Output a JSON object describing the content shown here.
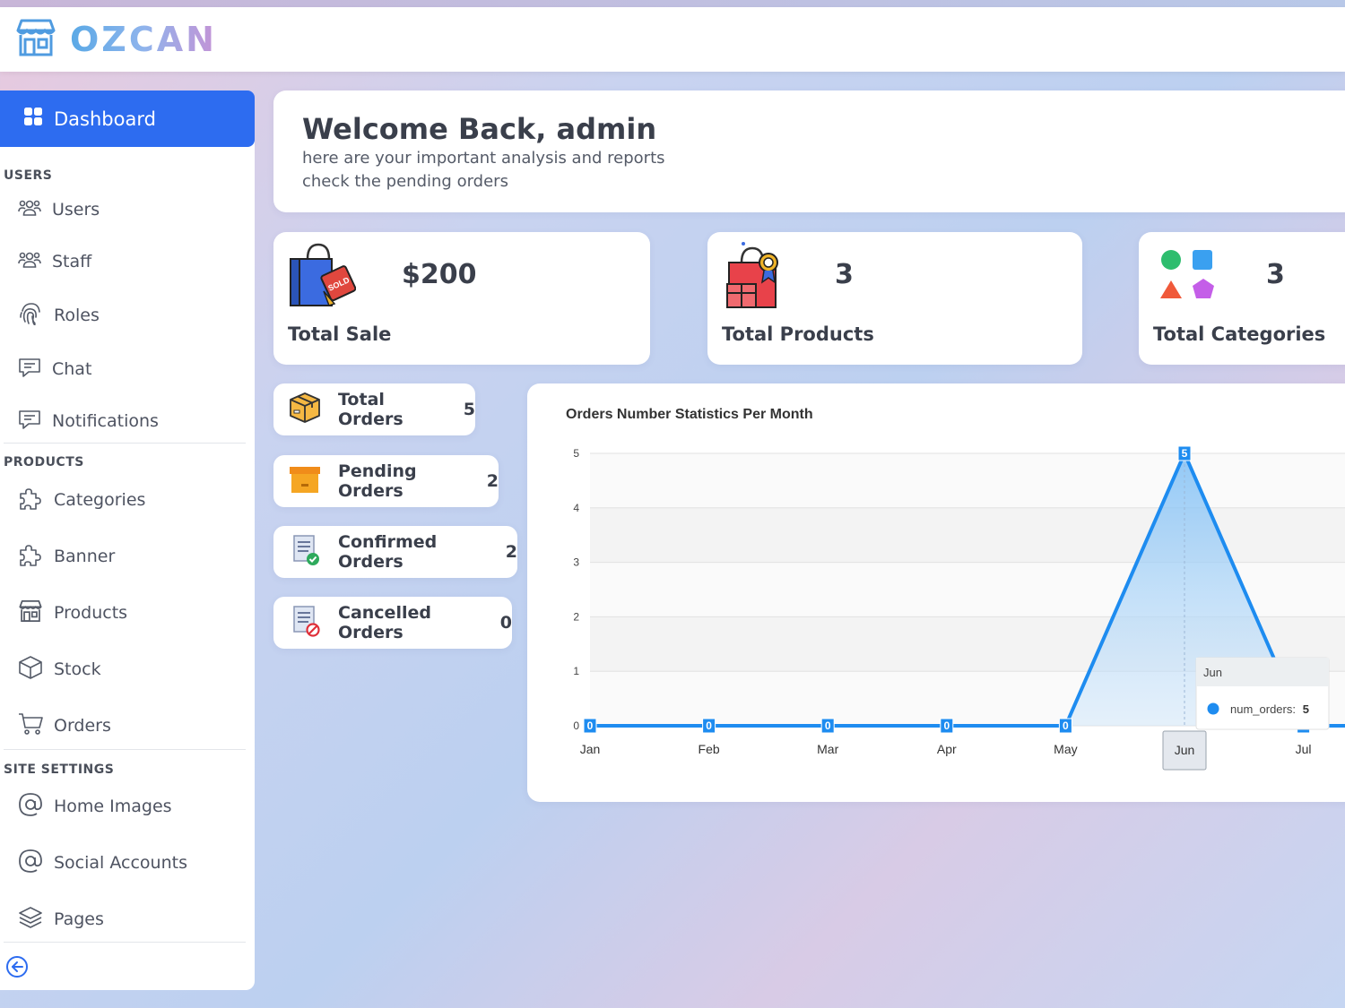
{
  "brand": {
    "name": "OZCAN",
    "logo_icon": "store-icon"
  },
  "sidebar": {
    "active": {
      "label": "Dashboard",
      "icon": "grid-icon"
    },
    "sections": [
      {
        "title": "USERS",
        "items": [
          {
            "label": "Users",
            "icon": "users-icon"
          },
          {
            "label": "Staff",
            "icon": "users-icon"
          },
          {
            "label": "Roles",
            "icon": "fingerprint-icon"
          },
          {
            "label": "Chat",
            "icon": "chat-icon"
          },
          {
            "label": "Notifications",
            "icon": "chat-icon"
          }
        ]
      },
      {
        "title": "PRODUCTS",
        "items": [
          {
            "label": "Categories",
            "icon": "puzzle-icon"
          },
          {
            "label": "Banner",
            "icon": "puzzle-icon"
          },
          {
            "label": "Products",
            "icon": "store-icon"
          },
          {
            "label": "Stock",
            "icon": "box-icon"
          },
          {
            "label": "Orders",
            "icon": "cart-icon"
          }
        ]
      },
      {
        "title": "SITE SETTINGS",
        "items": [
          {
            "label": "Home Images",
            "icon": "at-icon"
          },
          {
            "label": "Social Accounts",
            "icon": "at-icon"
          },
          {
            "label": "Pages",
            "icon": "layers-icon"
          }
        ]
      }
    ],
    "collapse_icon": "arrow-left-circle-icon"
  },
  "welcome": {
    "title": "Welcome Back, admin",
    "line1": "here are your important analysis and reports",
    "line2": "check the pending orders"
  },
  "stats": [
    {
      "value": "$200",
      "label": "Total Sale",
      "icon": "shopping-bag-icon"
    },
    {
      "value": "3",
      "label": "Total Products",
      "icon": "gift-bag-icon"
    },
    {
      "value": "3",
      "label": "Total Categories",
      "icon": "shapes-icon"
    }
  ],
  "orders": [
    {
      "label": "Total Orders",
      "count": "5",
      "icon": "package-icon"
    },
    {
      "label": "Pending Orders",
      "count": "2",
      "icon": "box-pending-icon"
    },
    {
      "label": "Confirmed Orders",
      "count": "2",
      "icon": "list-check-icon"
    },
    {
      "label": "Cancelled Orders",
      "count": "0",
      "icon": "list-cancel-icon"
    }
  ],
  "chart_data": {
    "type": "area",
    "title": "Orders Number Statistics Per Month",
    "categories": [
      "Jan",
      "Feb",
      "Mar",
      "Apr",
      "May",
      "Jun",
      "Jul"
    ],
    "series": [
      {
        "name": "num_orders",
        "values": [
          0,
          0,
          0,
          0,
          0,
          5,
          0
        ]
      }
    ],
    "ylim": [
      0,
      5
    ],
    "yticks": [
      "0",
      "1",
      "2",
      "3",
      "4",
      "5"
    ],
    "grid": true,
    "color": "#1e8cf0",
    "tooltip": {
      "title": "Jun",
      "series": "num_orders:",
      "value": "5"
    },
    "highlight_label": "Jun"
  }
}
